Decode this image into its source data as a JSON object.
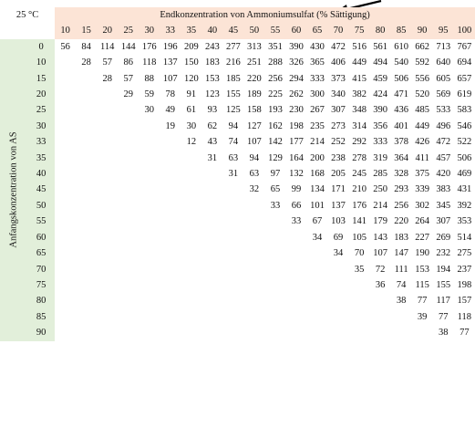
{
  "corner_label": "25 °C",
  "top_caption": "Endkonzentration von Ammoniumsulfat (% Sättigung)",
  "side_caption": "Anfangskonzentration von AS",
  "column_headers": [
    "10",
    "15",
    "20",
    "25",
    "30",
    "33",
    "35",
    "40",
    "45",
    "50",
    "55",
    "60",
    "65",
    "70",
    "75",
    "80",
    "85",
    "90",
    "95",
    "100"
  ],
  "rows": [
    {
      "label": "0",
      "values": [
        "56",
        "84",
        "114",
        "144",
        "176",
        "196",
        "209",
        "243",
        "277",
        "313",
        "351",
        "390",
        "430",
        "472",
        "516",
        "561",
        "610",
        "662",
        "713",
        "767"
      ]
    },
    {
      "label": "10",
      "values": [
        "",
        "28",
        "57",
        "86",
        "118",
        "137",
        "150",
        "183",
        "216",
        "251",
        "288",
        "326",
        "365",
        "406",
        "449",
        "494",
        "540",
        "592",
        "640",
        "694"
      ]
    },
    {
      "label": "15",
      "values": [
        "",
        "",
        "28",
        "57",
        "88",
        "107",
        "120",
        "153",
        "185",
        "220",
        "256",
        "294",
        "333",
        "373",
        "415",
        "459",
        "506",
        "556",
        "605",
        "657"
      ]
    },
    {
      "label": "20",
      "values": [
        "",
        "",
        "",
        "29",
        "59",
        "78",
        "91",
        "123",
        "155",
        "189",
        "225",
        "262",
        "300",
        "340",
        "382",
        "424",
        "471",
        "520",
        "569",
        "619"
      ]
    },
    {
      "label": "25",
      "values": [
        "",
        "",
        "",
        "",
        "30",
        "49",
        "61",
        "93",
        "125",
        "158",
        "193",
        "230",
        "267",
        "307",
        "348",
        "390",
        "436",
        "485",
        "533",
        "583"
      ]
    },
    {
      "label": "30",
      "values": [
        "",
        "",
        "",
        "",
        "",
        "19",
        "30",
        "62",
        "94",
        "127",
        "162",
        "198",
        "235",
        "273",
        "314",
        "356",
        "401",
        "449",
        "496",
        "546"
      ]
    },
    {
      "label": "33",
      "values": [
        "",
        "",
        "",
        "",
        "",
        "",
        "12",
        "43",
        "74",
        "107",
        "142",
        "177",
        "214",
        "252",
        "292",
        "333",
        "378",
        "426",
        "472",
        "522"
      ]
    },
    {
      "label": "35",
      "values": [
        "",
        "",
        "",
        "",
        "",
        "",
        "",
        "31",
        "63",
        "94",
        "129",
        "164",
        "200",
        "238",
        "278",
        "319",
        "364",
        "411",
        "457",
        "506"
      ]
    },
    {
      "label": "40",
      "values": [
        "",
        "",
        "",
        "",
        "",
        "",
        "",
        "",
        "31",
        "63",
        "97",
        "132",
        "168",
        "205",
        "245",
        "285",
        "328",
        "375",
        "420",
        "469"
      ]
    },
    {
      "label": "45",
      "values": [
        "",
        "",
        "",
        "",
        "",
        "",
        "",
        "",
        "",
        "32",
        "65",
        "99",
        "134",
        "171",
        "210",
        "250",
        "293",
        "339",
        "383",
        "431"
      ]
    },
    {
      "label": "50",
      "values": [
        "",
        "",
        "",
        "",
        "",
        "",
        "",
        "",
        "",
        "",
        "33",
        "66",
        "101",
        "137",
        "176",
        "214",
        "256",
        "302",
        "345",
        "392"
      ]
    },
    {
      "label": "55",
      "values": [
        "",
        "",
        "",
        "",
        "",
        "",
        "",
        "",
        "",
        "",
        "",
        "33",
        "67",
        "103",
        "141",
        "179",
        "220",
        "264",
        "307",
        "353"
      ]
    },
    {
      "label": "60",
      "values": [
        "",
        "",
        "",
        "",
        "",
        "",
        "",
        "",
        "",
        "",
        "",
        "",
        "34",
        "69",
        "105",
        "143",
        "183",
        "227",
        "269",
        "514"
      ]
    },
    {
      "label": "65",
      "values": [
        "",
        "",
        "",
        "",
        "",
        "",
        "",
        "",
        "",
        "",
        "",
        "",
        "",
        "34",
        "70",
        "107",
        "147",
        "190",
        "232",
        "275"
      ]
    },
    {
      "label": "70",
      "values": [
        "",
        "",
        "",
        "",
        "",
        "",
        "",
        "",
        "",
        "",
        "",
        "",
        "",
        "",
        "35",
        "72",
        "111",
        "153",
        "194",
        "237"
      ]
    },
    {
      "label": "75",
      "values": [
        "",
        "",
        "",
        "",
        "",
        "",
        "",
        "",
        "",
        "",
        "",
        "",
        "",
        "",
        "",
        "36",
        "74",
        "115",
        "155",
        "198"
      ]
    },
    {
      "label": "80",
      "values": [
        "",
        "",
        "",
        "",
        "",
        "",
        "",
        "",
        "",
        "",
        "",
        "",
        "",
        "",
        "",
        "",
        "38",
        "77",
        "117",
        "157"
      ]
    },
    {
      "label": "85",
      "values": [
        "",
        "",
        "",
        "",
        "",
        "",
        "",
        "",
        "",
        "",
        "",
        "",
        "",
        "",
        "",
        "",
        "",
        "39",
        "77",
        "118"
      ]
    },
    {
      "label": "90",
      "values": [
        "",
        "",
        "",
        "",
        "",
        "",
        "",
        "",
        "",
        "",
        "",
        "",
        "",
        "",
        "",
        "",
        "",
        "",
        "38",
        "77"
      ]
    }
  ]
}
